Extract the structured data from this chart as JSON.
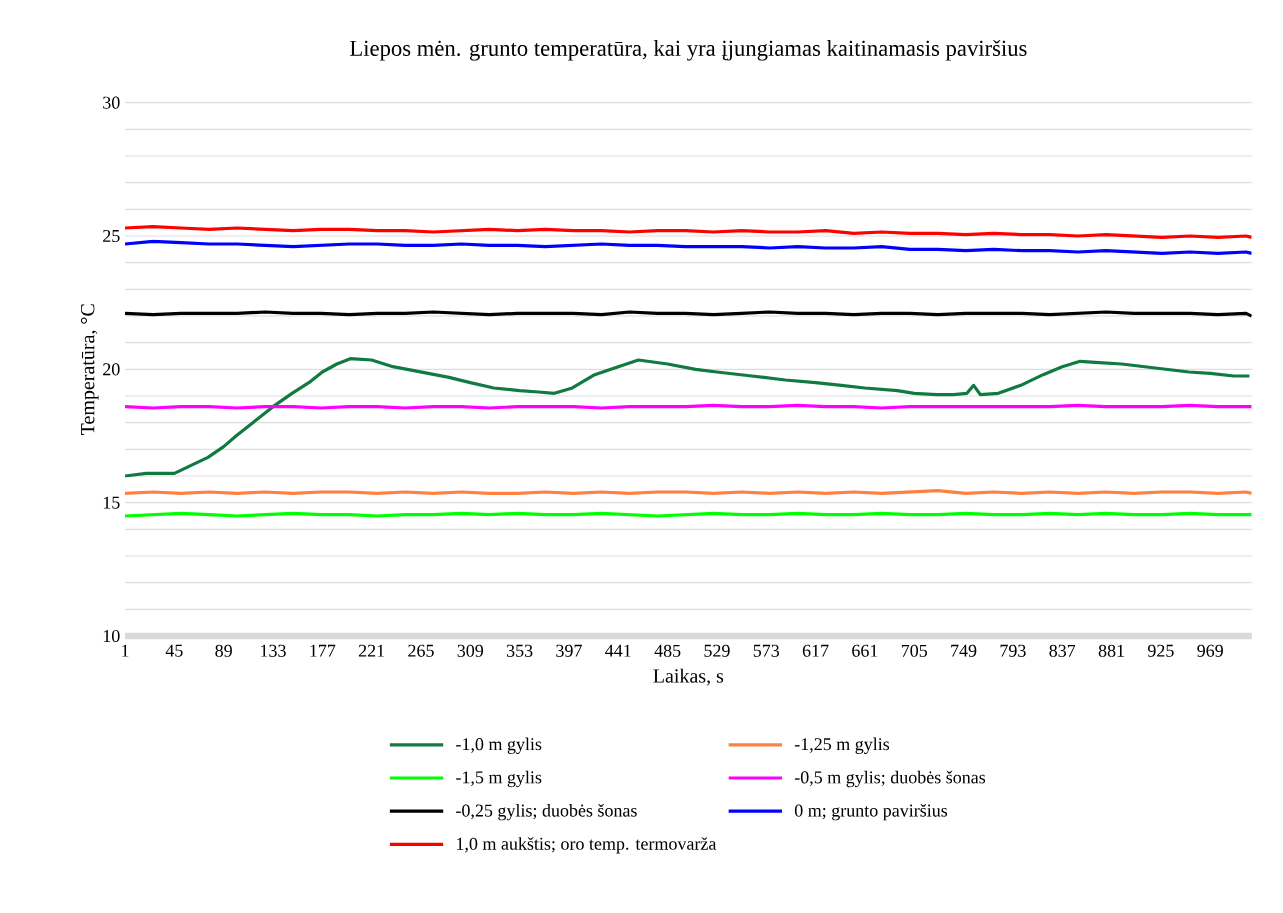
{
  "chart_data": {
    "type": "line",
    "title": "Liepos mėn. grunto temperatūra, kai yra įjungiamas kaitinamasis paviršius",
    "xlabel": "Laikas, s",
    "ylabel": "Temperatūra, °C",
    "x": [
      1,
      26,
      51,
      76,
      101,
      126,
      151,
      176,
      201,
      226,
      251,
      276,
      301,
      326,
      351,
      376,
      401,
      426,
      451,
      476,
      501,
      526,
      551,
      576,
      601,
      626,
      651,
      676,
      701,
      726,
      751,
      776,
      801,
      826,
      851,
      876,
      901,
      926,
      951,
      976,
      1001,
      1006
    ],
    "xlim": [
      1,
      1006
    ],
    "xticks": [
      1,
      45,
      89,
      133,
      177,
      221,
      265,
      309,
      353,
      397,
      441,
      485,
      529,
      573,
      617,
      661,
      705,
      749,
      793,
      837,
      881,
      925,
      969
    ],
    "ylim": [
      10,
      30
    ],
    "yticks": [
      10,
      {
        "value": 11,
        "label": null
      },
      {
        "value": 12,
        "label": null
      },
      {
        "value": 13,
        "label": null
      },
      {
        "value": 14,
        "label": null
      },
      15,
      {
        "value": 16,
        "label": null
      },
      {
        "value": 17,
        "label": null
      },
      {
        "value": 18,
        "label": null
      },
      {
        "value": 19,
        "label": null
      },
      20,
      {
        "value": 21,
        "label": null
      },
      {
        "value": 22,
        "label": null
      },
      {
        "value": 23,
        "label": null
      },
      {
        "value": 24,
        "label": null
      },
      25,
      {
        "value": 26,
        "label": null
      },
      {
        "value": 27,
        "label": null
      },
      {
        "value": 28,
        "label": null
      },
      {
        "value": 29,
        "label": null
      },
      30
    ],
    "grid": "y",
    "legend": "bottom",
    "marker": "none",
    "line_style": "solid",
    "series": [
      {
        "name": "-1,0 m gylis",
        "color": "#117a41",
        "x": [
          1,
          20,
          45,
          60,
          75,
          89,
          100,
          115,
          133,
          150,
          165,
          177,
          190,
          202,
          221,
          240,
          265,
          290,
          309,
          330,
          353,
          370,
          384,
          400,
          420,
          441,
          459,
          485,
          510,
          529,
          560,
          590,
          617,
          640,
          661,
          690,
          705,
          725,
          740,
          752,
          758,
          764,
          780,
          800,
          820,
          837,
          853,
          870,
          890,
          910,
          930,
          950,
          969,
          990,
          1004
        ],
        "values": [
          16.0,
          16.1,
          16.1,
          16.4,
          16.7,
          17.1,
          17.5,
          18.0,
          18.6,
          19.1,
          19.5,
          19.9,
          20.2,
          20.4,
          20.35,
          20.1,
          19.9,
          19.7,
          19.5,
          19.3,
          19.2,
          19.15,
          19.1,
          19.3,
          19.8,
          20.1,
          20.35,
          20.2,
          20.0,
          19.9,
          19.75,
          19.6,
          19.5,
          19.4,
          19.3,
          19.2,
          19.1,
          19.05,
          19.05,
          19.1,
          19.4,
          19.05,
          19.1,
          19.4,
          19.8,
          20.1,
          20.3,
          20.25,
          20.2,
          20.1,
          20.0,
          19.9,
          19.85,
          19.75,
          19.75
        ]
      },
      {
        "name": "-1,25 m gylis",
        "color": "#ff8040",
        "values": [
          15.35,
          15.4,
          15.35,
          15.4,
          15.35,
          15.4,
          15.35,
          15.4,
          15.4,
          15.35,
          15.4,
          15.35,
          15.4,
          15.35,
          15.35,
          15.4,
          15.35,
          15.4,
          15.35,
          15.4,
          15.4,
          15.35,
          15.4,
          15.35,
          15.4,
          15.35,
          15.4,
          15.35,
          15.4,
          15.45,
          15.35,
          15.4,
          15.35,
          15.4,
          15.35,
          15.4,
          15.35,
          15.4,
          15.4,
          15.35,
          15.4,
          15.35
        ]
      },
      {
        "name": "-1,5 m gylis",
        "color": "#00ff00",
        "values": [
          14.5,
          14.55,
          14.6,
          14.55,
          14.5,
          14.55,
          14.6,
          14.55,
          14.55,
          14.5,
          14.55,
          14.55,
          14.6,
          14.55,
          14.6,
          14.55,
          14.55,
          14.6,
          14.55,
          14.5,
          14.55,
          14.6,
          14.55,
          14.55,
          14.6,
          14.55,
          14.55,
          14.6,
          14.55,
          14.55,
          14.6,
          14.55,
          14.55,
          14.6,
          14.55,
          14.6,
          14.55,
          14.55,
          14.6,
          14.55,
          14.55,
          14.55
        ]
      },
      {
        "name": "-0,5 m gylis; duobės šonas",
        "color": "#ff00ff",
        "values": [
          18.6,
          18.55,
          18.6,
          18.6,
          18.55,
          18.6,
          18.6,
          18.55,
          18.6,
          18.6,
          18.55,
          18.6,
          18.6,
          18.55,
          18.6,
          18.6,
          18.6,
          18.55,
          18.6,
          18.6,
          18.6,
          18.65,
          18.6,
          18.6,
          18.65,
          18.6,
          18.6,
          18.55,
          18.6,
          18.6,
          18.6,
          18.6,
          18.6,
          18.6,
          18.65,
          18.6,
          18.6,
          18.6,
          18.65,
          18.6,
          18.6,
          18.6
        ]
      },
      {
        "name": "-0,25  gylis; duobės šonas",
        "color": "#000000",
        "values": [
          22.1,
          22.05,
          22.1,
          22.1,
          22.1,
          22.15,
          22.1,
          22.1,
          22.05,
          22.1,
          22.1,
          22.15,
          22.1,
          22.05,
          22.1,
          22.1,
          22.1,
          22.05,
          22.15,
          22.1,
          22.1,
          22.05,
          22.1,
          22.15,
          22.1,
          22.1,
          22.05,
          22.1,
          22.1,
          22.05,
          22.1,
          22.1,
          22.1,
          22.05,
          22.1,
          22.15,
          22.1,
          22.1,
          22.1,
          22.05,
          22.1,
          22.0
        ]
      },
      {
        "name": "0 m; grunto paviršius",
        "color": "#0000ff",
        "values": [
          24.7,
          24.8,
          24.75,
          24.7,
          24.7,
          24.65,
          24.6,
          24.65,
          24.7,
          24.7,
          24.65,
          24.65,
          24.7,
          24.65,
          24.65,
          24.6,
          24.65,
          24.7,
          24.65,
          24.65,
          24.6,
          24.6,
          24.6,
          24.55,
          24.6,
          24.55,
          24.55,
          24.6,
          24.5,
          24.5,
          24.45,
          24.5,
          24.45,
          24.45,
          24.4,
          24.45,
          24.4,
          24.35,
          24.4,
          24.35,
          24.4,
          24.35
        ]
      },
      {
        "name": "1,0 m aukštis; oro temp. termovarža",
        "color": "#ff0000",
        "values": [
          25.3,
          25.35,
          25.3,
          25.25,
          25.3,
          25.25,
          25.2,
          25.25,
          25.25,
          25.2,
          25.2,
          25.15,
          25.2,
          25.25,
          25.2,
          25.25,
          25.2,
          25.2,
          25.15,
          25.2,
          25.2,
          25.15,
          25.2,
          25.15,
          25.15,
          25.2,
          25.1,
          25.15,
          25.1,
          25.1,
          25.05,
          25.1,
          25.05,
          25.05,
          25.0,
          25.05,
          25.0,
          24.95,
          25.0,
          24.95,
          25.0,
          24.95
        ]
      }
    ]
  }
}
